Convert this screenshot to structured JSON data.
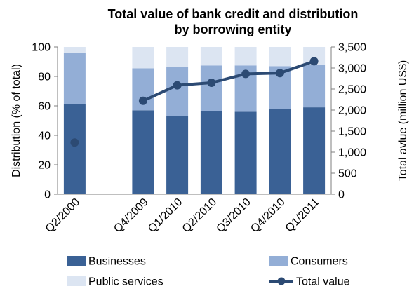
{
  "colors": {
    "businesses": "#3A6195",
    "consumers": "#93AED6",
    "public_services": "#DCE5F2",
    "total_line": "#2C4A73",
    "axis": "#7F7F7F"
  },
  "chart_data": {
    "type": "bar",
    "title_lines": [
      "Total value of bank credit and distribution",
      "by borrowing entity"
    ],
    "categories": [
      "Q2/2000",
      "",
      "Q4/2009",
      "Q1/2010",
      "Q2/2010",
      "Q3/2010",
      "Q4/2010",
      "Q1/2011"
    ],
    "series": [
      {
        "name": "Businesses",
        "type": "bar",
        "axis": "left",
        "values": [
          61,
          null,
          57,
          53,
          56.5,
          56,
          58,
          59
        ]
      },
      {
        "name": "Consumers",
        "type": "bar",
        "axis": "left",
        "values": [
          35,
          null,
          28.5,
          33.5,
          31,
          31.5,
          29,
          29
        ]
      },
      {
        "name": "Public services",
        "type": "bar",
        "axis": "left",
        "values": [
          4,
          null,
          14.5,
          13.5,
          12.5,
          12.5,
          13,
          12
        ]
      },
      {
        "name": "Total value",
        "type": "line",
        "axis": "right",
        "values": [
          1230,
          null,
          2220,
          2590,
          2650,
          2860,
          2880,
          3160
        ]
      }
    ],
    "ylabel_left": "Distribution (% of total)",
    "ylabel_right": "Total avlue (million US$)",
    "ylim_left": [
      0,
      100
    ],
    "yticks_left": [
      "0",
      "20",
      "40",
      "60",
      "80",
      "100"
    ],
    "ylim_right": [
      0,
      3500
    ],
    "yticks_right": [
      "0",
      "500",
      "1,000",
      "1,500",
      "2,000",
      "2,500",
      "3,000",
      "3,500"
    ],
    "stacked": true,
    "grid": false,
    "legend_position": "bottom"
  }
}
